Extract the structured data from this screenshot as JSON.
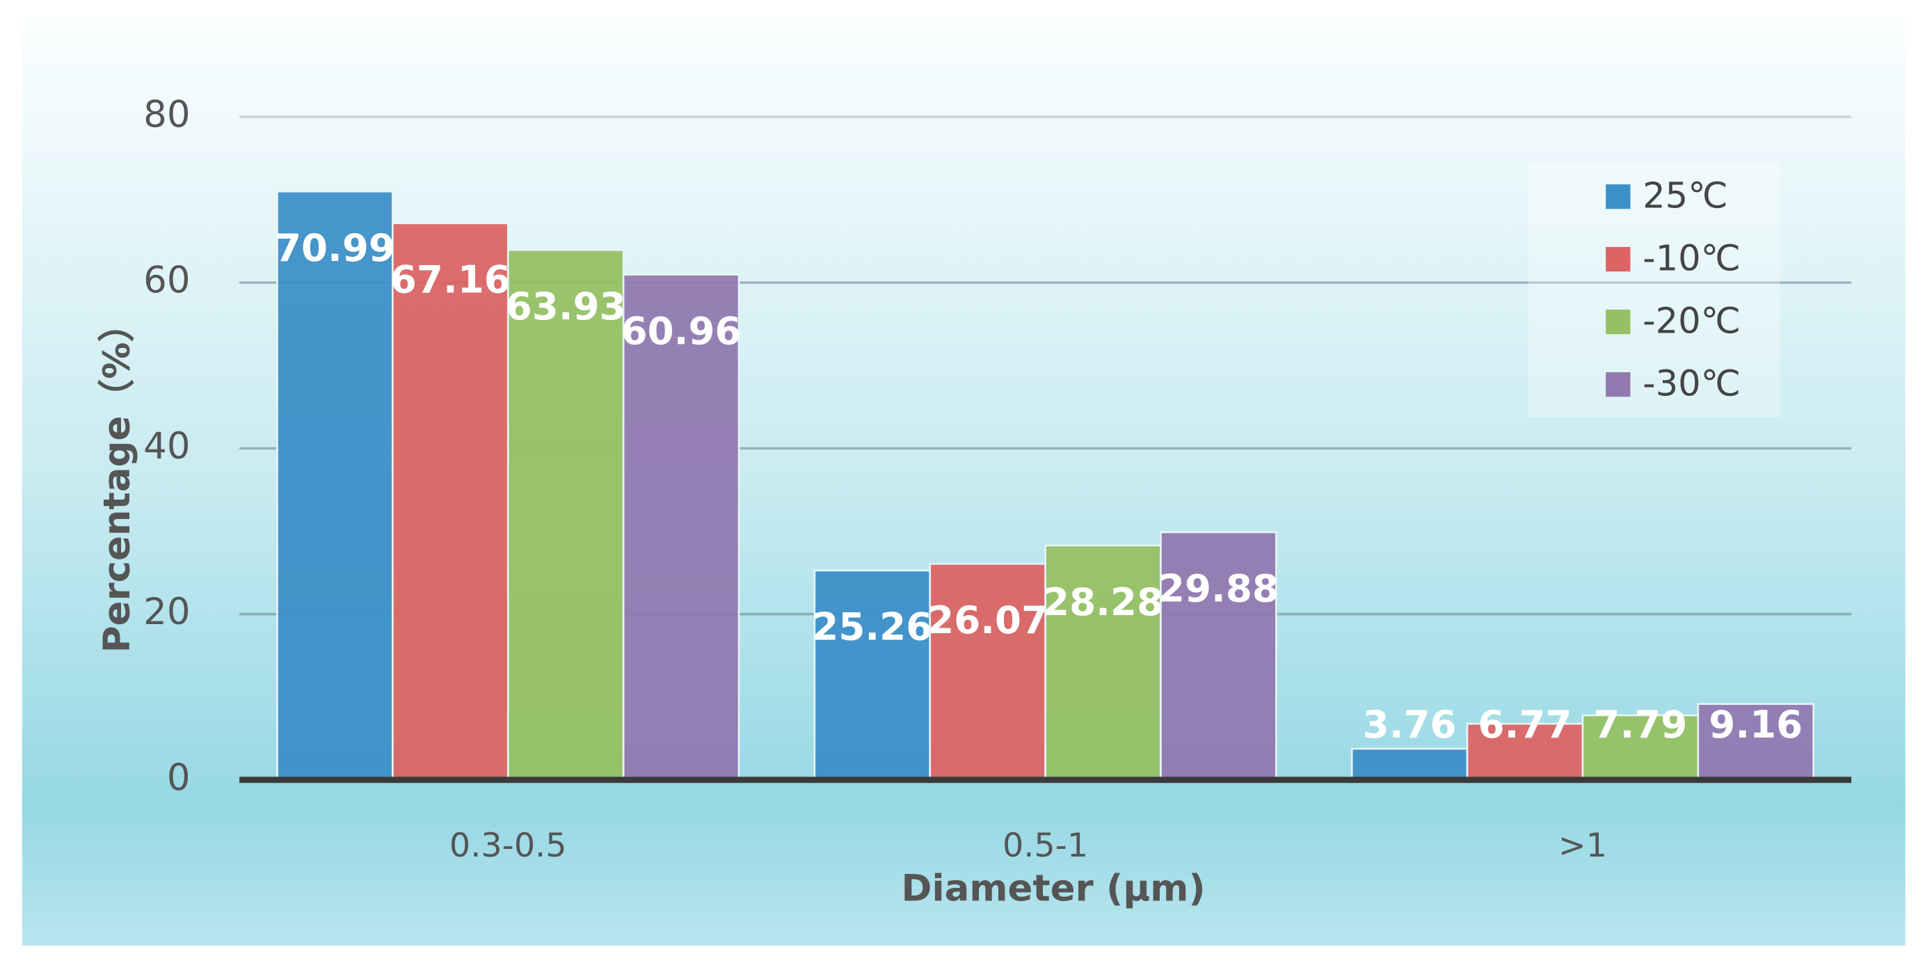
{
  "chart_data": {
    "type": "bar",
    "x_label": "Diameter (μm)",
    "y_label": "Percentage（%）",
    "categories": [
      "0.3-0.5",
      "0.5-1",
      ">1"
    ],
    "series": [
      {
        "name": "25℃",
        "color": "#3d8fc8",
        "values": [
          70.99,
          25.26,
          3.76
        ]
      },
      {
        "name": "-10℃",
        "color": "#dc6464",
        "values": [
          67.16,
          26.07,
          6.77
        ]
      },
      {
        "name": "-20℃",
        "color": "#96c064",
        "values": [
          63.93,
          28.28,
          7.79
        ]
      },
      {
        "name": "-30℃",
        "color": "#9179b0",
        "values": [
          60.96,
          29.88,
          9.16
        ]
      }
    ],
    "ylim": [
      0,
      80
    ],
    "yticks": [
      0,
      20,
      40,
      60,
      80
    ],
    "grid": true,
    "legend": "upper right"
  }
}
